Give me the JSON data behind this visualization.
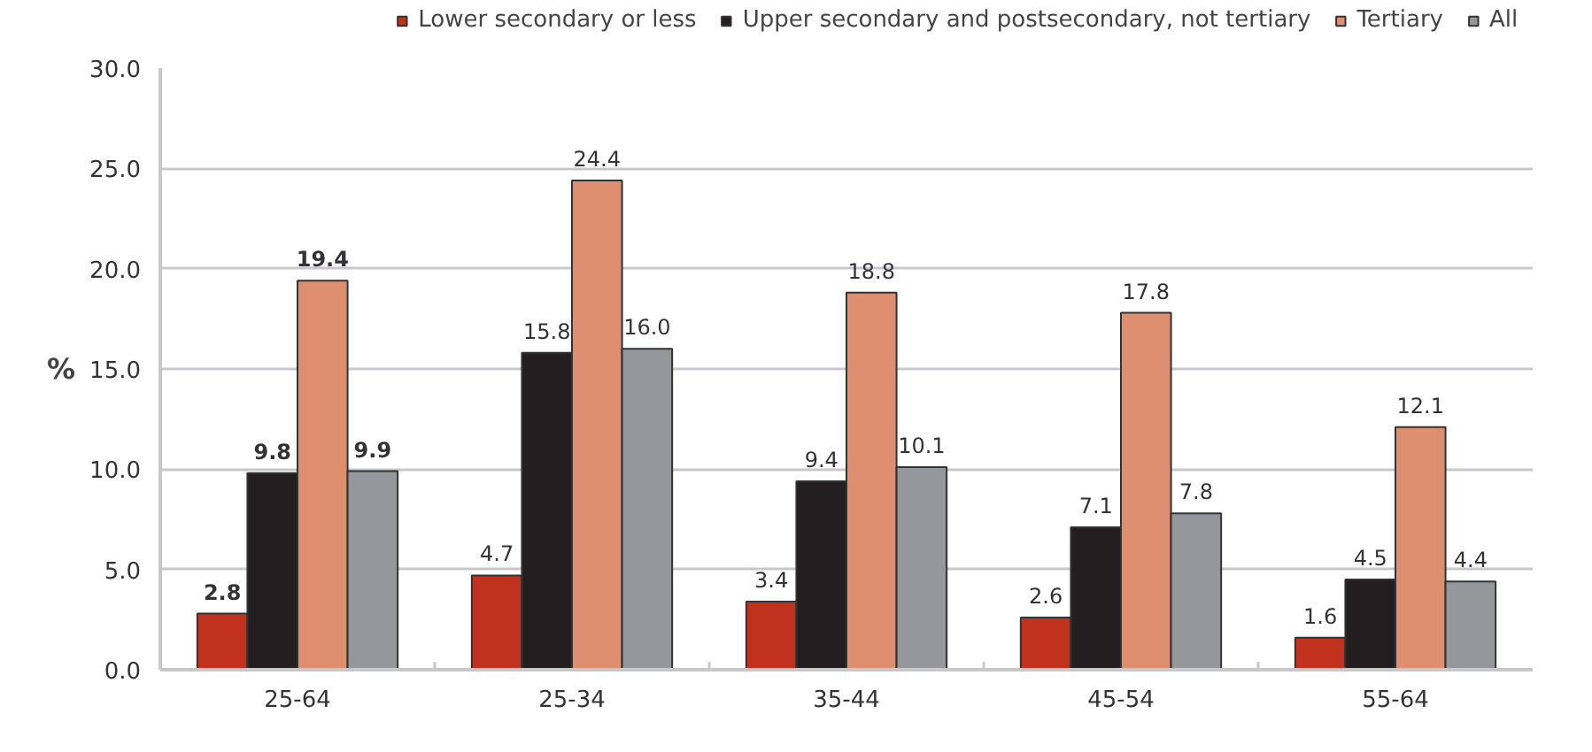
{
  "chart_data": {
    "type": "bar",
    "ylabel": "%",
    "categories": [
      "25-64",
      "25-34",
      "35-44",
      "45-54",
      "55-64"
    ],
    "series": [
      {
        "name": "Lower secondary or less",
        "color": "#c0311e",
        "values": [
          2.8,
          4.7,
          3.4,
          2.6,
          1.6
        ],
        "value_labels": [
          "2.8",
          "4.7",
          "3.4",
          "2.6",
          "1.6"
        ]
      },
      {
        "name": "Upper secondary and postsecondary, not tertiary",
        "color": "#231f20",
        "values": [
          9.8,
          15.8,
          9.4,
          7.1,
          4.5
        ],
        "value_labels": [
          "9.8",
          "15.8",
          "9.4",
          "7.1",
          "4.5"
        ]
      },
      {
        "name": "Tertiary",
        "color": "#de8f70",
        "values": [
          19.4,
          24.4,
          18.8,
          17.8,
          12.1
        ],
        "value_labels": [
          "19.4",
          "24.4",
          "18.8",
          "17.8",
          "12.1"
        ]
      },
      {
        "name": "All",
        "color": "#96979b",
        "values": [
          9.9,
          16.0,
          10.1,
          7.8,
          4.4
        ],
        "value_labels": [
          "9.9",
          "16.0",
          "10.1",
          "7.8",
          "4.4"
        ]
      }
    ],
    "ylim": [
      0,
      30
    ],
    "yticks": [
      {
        "value": 0,
        "label": "0.0"
      },
      {
        "value": 5,
        "label": "5.0"
      },
      {
        "value": 10,
        "label": "10.0"
      },
      {
        "value": 15,
        "label": "15.0"
      },
      {
        "value": 20,
        "label": "20.0"
      },
      {
        "value": 25,
        "label": "25.0"
      },
      {
        "value": 30,
        "label": "30.0"
      }
    ],
    "grid": "y",
    "legend": "top",
    "data_labels": true
  }
}
